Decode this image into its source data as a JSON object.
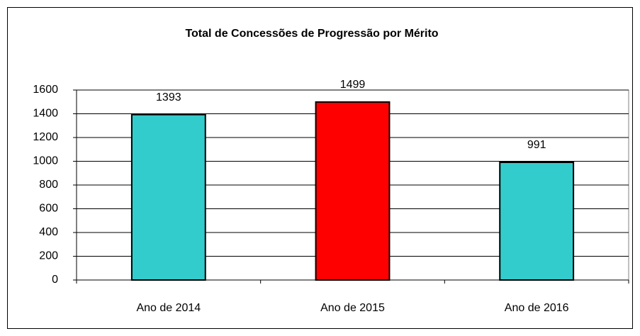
{
  "chart_data": {
    "type": "bar",
    "title": "Total de Concessões de Progressão por Mérito",
    "categories": [
      "Ano de 2014",
      "Ano de 2015",
      "Ano de 2016"
    ],
    "values": [
      1393,
      1499,
      991
    ],
    "colors": [
      "#33cccc",
      "#ff0000",
      "#33cccc"
    ],
    "ylim": [
      0,
      1600
    ],
    "yticks": [
      0,
      200,
      400,
      600,
      800,
      1000,
      1200,
      1400,
      1600
    ],
    "grid": true
  }
}
